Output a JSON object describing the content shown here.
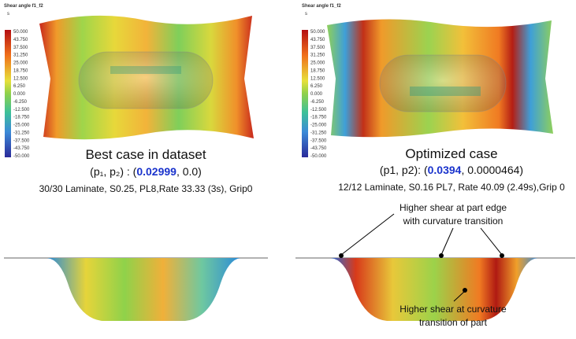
{
  "left": {
    "legend_title": "Shear angle f1_f2",
    "legend_unit": "s",
    "color_bar_labels": [
      "50.000",
      "43.750",
      "37.500",
      "31.250",
      "25.000",
      "18.750",
      "12.500",
      "6.250",
      "0.000",
      "-6.250",
      "-12.500",
      "-18.750",
      "-25.000",
      "-31.250",
      "-37.500",
      "-43.750",
      "-50.000"
    ],
    "caption": "Best case in dataset",
    "params_prefix": "(p₁, p₂) : (",
    "params_value": "0.02999",
    "params_suffix": ", 0.0)",
    "settings": "30/30 Laminate, S0.25, PL8,Rate 33.33 (3s), Grip0"
  },
  "right": {
    "legend_title": "Shear angle f1_f2",
    "legend_unit": "s",
    "color_bar_labels": [
      "50.000",
      "43.750",
      "37.500",
      "31.250",
      "25.000",
      "18.750",
      "12.500",
      "6.250",
      "0.000",
      "-6.250",
      "-12.500",
      "-18.750",
      "-25.000",
      "-31.250",
      "-37.500",
      "-43.750",
      "-50.000"
    ],
    "caption": "Optimized case",
    "params_prefix": "(p1, p2): (",
    "params_value": "0.0394",
    "params_suffix": ", 0.0000464)",
    "settings": "12/12 Laminate, S0.16 PL7, Rate 40.09 (2.49s),Grip 0"
  },
  "annotations": {
    "top": [
      "Higher shear at part edge",
      "with curvature transition"
    ],
    "bottom": [
      "Higher shear at curvature",
      "transition of part"
    ]
  }
}
